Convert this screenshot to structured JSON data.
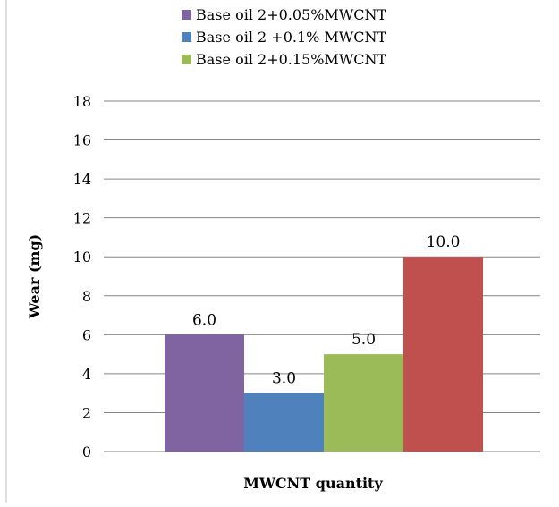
{
  "chart_data": {
    "type": "bar",
    "title": "",
    "xlabel": "MWCNT quantity",
    "ylabel": "Wear (mg)",
    "ylim": [
      0,
      18
    ],
    "yticks": [
      0,
      2,
      4,
      6,
      8,
      10,
      12,
      14,
      16,
      18
    ],
    "grid": true,
    "legend_position": "top",
    "categories": [
      ""
    ],
    "series": [
      {
        "name": "Base oil 2+0.05%MWCNT",
        "color": "#8064A2",
        "values": [
          6.0
        ],
        "data_label": "6.0",
        "in_legend": true
      },
      {
        "name": "Base oil 2 +0.1% MWCNT",
        "color": "#4F81BD",
        "values": [
          3.0
        ],
        "data_label": "3.0",
        "in_legend": true
      },
      {
        "name": "Base oil 2+0.15%MWCNT",
        "color": "#9BBB59",
        "values": [
          5.0
        ],
        "data_label": "5.0",
        "in_legend": true
      },
      {
        "name": "",
        "color": "#C0504D",
        "values": [
          10.0
        ],
        "data_label": "10.0",
        "in_legend": false
      }
    ]
  }
}
